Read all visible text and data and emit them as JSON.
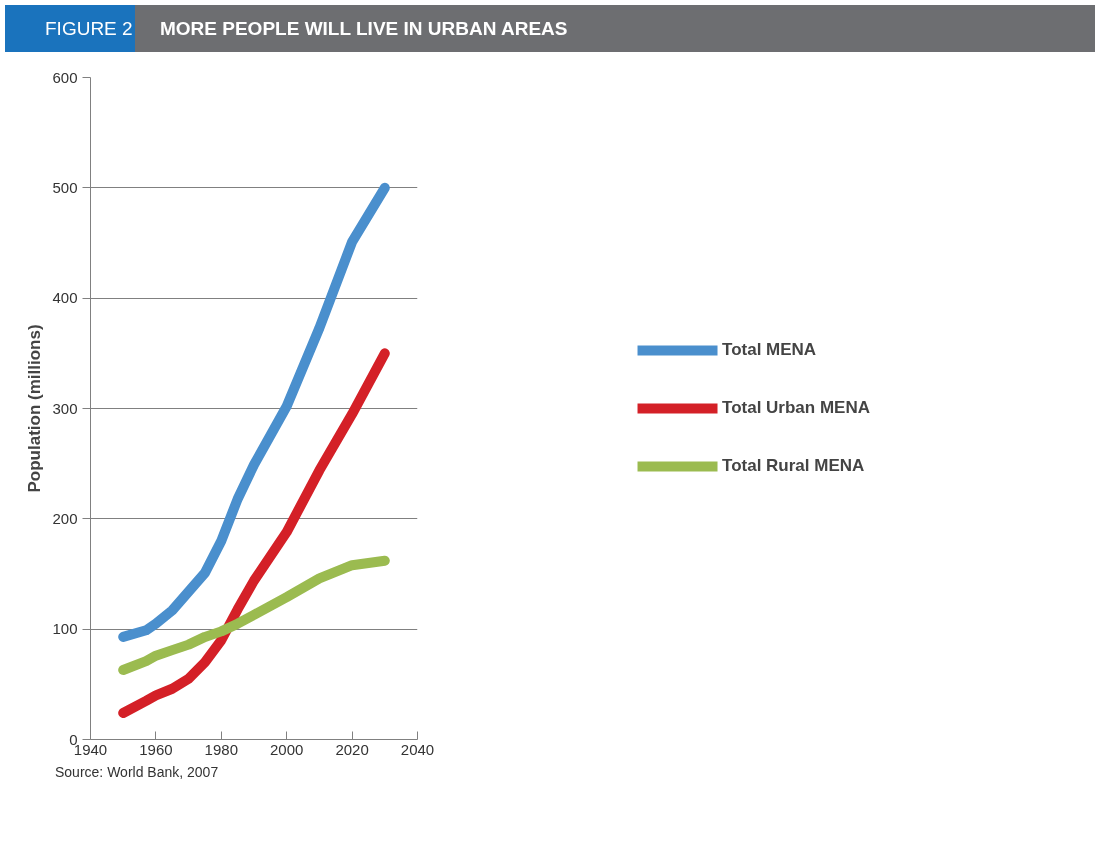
{
  "chart_data": {
    "type": "line",
    "subtitle": "FIGURE 2",
    "title": "MORE PEOPLE WILL LIVE IN URBAN AREAS",
    "ylabel": "Population (millions)",
    "x": [
      1950,
      1957,
      1960,
      1965,
      1970,
      1975,
      1980,
      1985,
      1990,
      2000,
      2010,
      2020,
      2030
    ],
    "series": [
      {
        "name": "Total MENA",
        "color": "#4a8fcd",
        "values": [
          93,
          99,
          105,
          117,
          134,
          151,
          180,
          218,
          249,
          302,
          373,
          451,
          500
        ]
      },
      {
        "name": "Total Urban MENA",
        "color": "#d42027",
        "values": [
          24,
          35,
          40,
          46,
          55,
          70,
          90,
          118,
          144,
          188,
          244,
          295,
          350
        ]
      },
      {
        "name": "Total Rural MENA",
        "color": "#9bbb50",
        "values": [
          63,
          71,
          76,
          81,
          86,
          93,
          98,
          105,
          113,
          129,
          146,
          158,
          162
        ]
      }
    ],
    "xlim": [
      1940,
      2040
    ],
    "xticks": [
      1940,
      1960,
      1980,
      2000,
      2020,
      2040
    ],
    "ylim": [
      0,
      600
    ],
    "yticks": [
      0,
      100,
      200,
      300,
      400,
      500,
      600
    ],
    "grid": "y",
    "legend": "right",
    "marker": "none",
    "line_style": "solid",
    "annotations": [
      "Source: World Bank, 2007"
    ]
  }
}
